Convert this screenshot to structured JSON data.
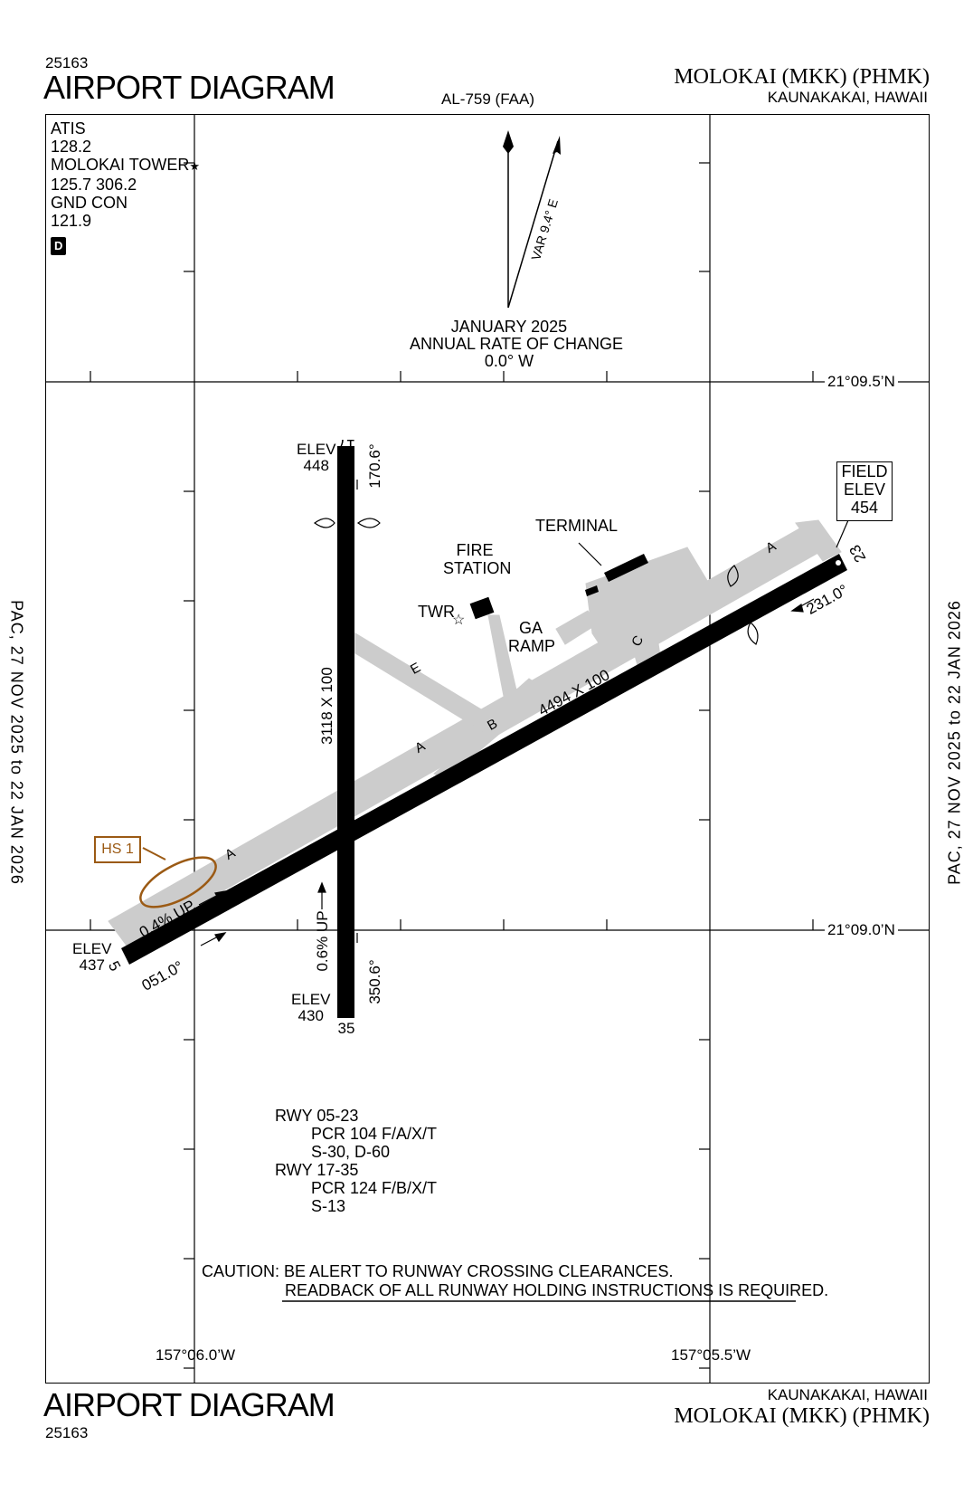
{
  "header": {
    "chart_number": "25163",
    "title": "AIRPORT DIAGRAM",
    "procedure_id": "AL-759 (FAA)",
    "airport_name": "MOLOKAI (MKK) (PHMK)",
    "city_state": "KAUNAKAKAI, HAWAII"
  },
  "footer": {
    "chart_number": "25163",
    "title": "AIRPORT DIAGRAM",
    "airport_name": "MOLOKAI (MKK) (PHMK)",
    "city_state": "KAUNAKAKAI, HAWAII"
  },
  "effective_dates": "PAC,  27 NOV 2025  to  22 JAN 2026",
  "comms": {
    "atis_label": "ATIS",
    "atis_freq": "128.2",
    "tower_label": "MOLOKAI TOWER",
    "tower_freq": "125.7  306.2",
    "gnd_label": "GND CON",
    "gnd_freq": "121.9",
    "airspace_class": "D"
  },
  "magnetic": {
    "variation": "VAR 9.4° E",
    "date": "JANUARY 2025",
    "rate_label": "ANNUAL RATE OF CHANGE",
    "rate_value": "0.0° W"
  },
  "coordinates": {
    "lat_top": "21°09.5’N",
    "lat_bottom": "21°09.0’N",
    "lon_left": "157°06.0’W",
    "lon_right": "157°05.5’W"
  },
  "runways": {
    "rwy_17_number": "17",
    "rwy_35_number": "35",
    "rwy_5_number": "5",
    "rwy_23_number": "23",
    "hdg_170": "170.6°",
    "hdg_350": "350.6°",
    "hdg_051": "051.0°",
    "hdg_231": "231.0°",
    "dim_17_35": "3118 X 100",
    "dim_05_23": "4494 X 100",
    "slope_35": "0.6% UP",
    "slope_05": "0.4% UP",
    "elev_17_label": "ELEV",
    "elev_17": "448",
    "elev_35_label": "ELEV",
    "elev_35": "430",
    "elev_5_label": "ELEV",
    "elev_5": "437"
  },
  "field_elev": {
    "line1": "FIELD",
    "line2": "ELEV",
    "value": "454"
  },
  "labels": {
    "terminal": "TERMINAL",
    "fire_1": "FIRE",
    "fire_2": "STATION",
    "twr": "TWR",
    "ga_1": "GA",
    "ga_2": "RAMP",
    "twy_a1": "A",
    "twy_a2": "A",
    "twy_a3": "A",
    "twy_b": "B",
    "twy_c": "C",
    "twy_e": "E",
    "hot_spot": "HS 1"
  },
  "pcr": {
    "rwy1": "RWY 05-23",
    "rwy1_pcr": "PCR 104 F/A/X/T",
    "rwy1_wt": "S-30, D-60",
    "rwy2": "RWY 17-35",
    "rwy2_pcr": "PCR 124 F/B/X/T",
    "rwy2_wt": "S-13"
  },
  "caution": {
    "line1": "CAUTION: BE ALERT TO RUNWAY CROSSING CLEARANCES.",
    "line2": "READBACK OF ALL RUNWAY HOLDING INSTRUCTIONS IS REQUIRED."
  },
  "colors": {
    "taxiway": "#cccccc",
    "hot_spot": "#9b5a14",
    "runway": "#000000"
  }
}
